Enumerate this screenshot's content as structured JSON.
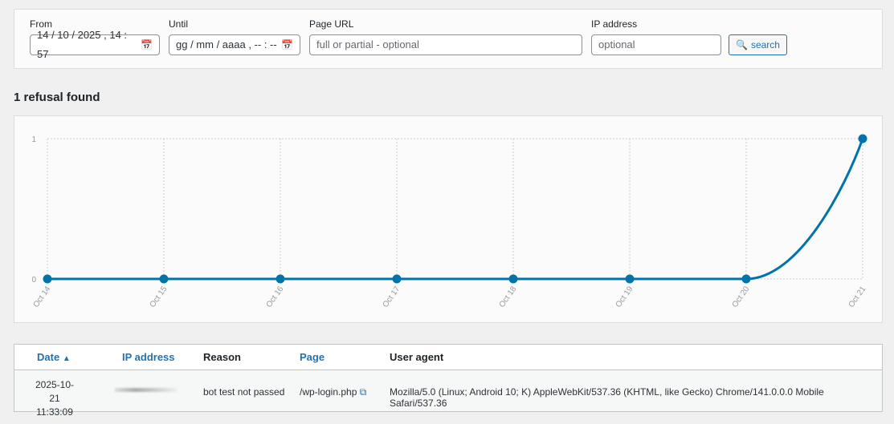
{
  "filters": {
    "from": {
      "label": "From",
      "value": "14 / 10 / 2025 ,  14 : 57"
    },
    "until": {
      "label": "Until",
      "placeholder": "gg / mm / aaaa ,  -- : --"
    },
    "page_url": {
      "label": "Page URL",
      "placeholder": "full or partial - optional"
    },
    "ip": {
      "label": "IP address",
      "placeholder": "optional"
    },
    "search_label": "search"
  },
  "result_count": "1 refusal found",
  "chart_data": {
    "type": "line",
    "categories": [
      "Oct 14",
      "Oct 15",
      "Oct 16",
      "Oct 17",
      "Oct 18",
      "Oct 19",
      "Oct 20",
      "Oct 21"
    ],
    "values": [
      0,
      0,
      0,
      0,
      0,
      0,
      0,
      1
    ],
    "yticks": [
      "0",
      "1"
    ],
    "ylim": [
      0,
      1
    ],
    "grid": true,
    "color": "#0073aa"
  },
  "table": {
    "headers": {
      "date": "Date",
      "sort_icon": "▲",
      "ip": "IP address",
      "reason": "Reason",
      "page": "Page",
      "ua": "User agent"
    },
    "rows": [
      {
        "date": "2025-10-21",
        "time": "11:33:09",
        "ip": "",
        "reason": "bot test not passed",
        "page": "/wp-login.php",
        "ua": "Mozilla/5.0 (Linux; Android 10; K) AppleWebKit/537.36 (KHTML, like Gecko) Chrome/141.0.0.0 Mobile Safari/537.36"
      }
    ]
  }
}
